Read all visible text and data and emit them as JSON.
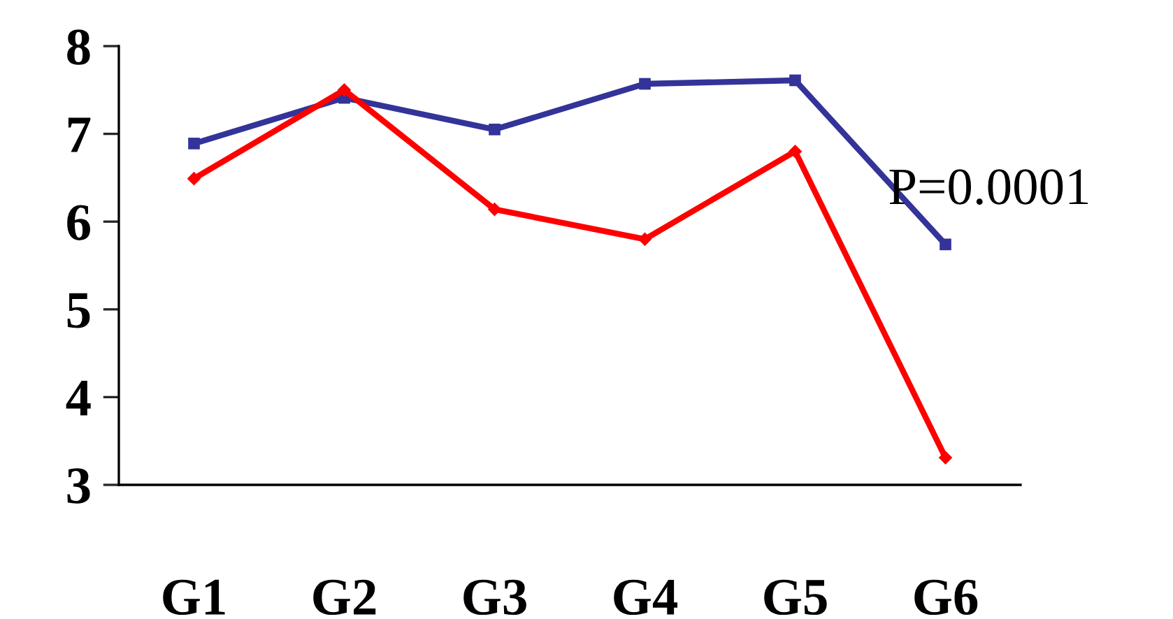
{
  "chart_data": {
    "type": "line",
    "categories": [
      "G1",
      "G2",
      "G3",
      "G4",
      "G5",
      "G6"
    ],
    "series": [
      {
        "color": "#333399",
        "marker": "square",
        "values": [
          6.89,
          7.41,
          7.05,
          7.57,
          7.61,
          5.74
        ]
      },
      {
        "color": "#ff0000",
        "marker": "diamond",
        "values": [
          6.49,
          7.5,
          6.14,
          5.8,
          6.8,
          3.31
        ]
      }
    ],
    "ylim": [
      3,
      8
    ],
    "yticks": [
      3,
      4,
      5,
      6,
      7,
      8
    ],
    "grid": false,
    "legend": false,
    "annotations": [
      "P=0.0001"
    ]
  }
}
